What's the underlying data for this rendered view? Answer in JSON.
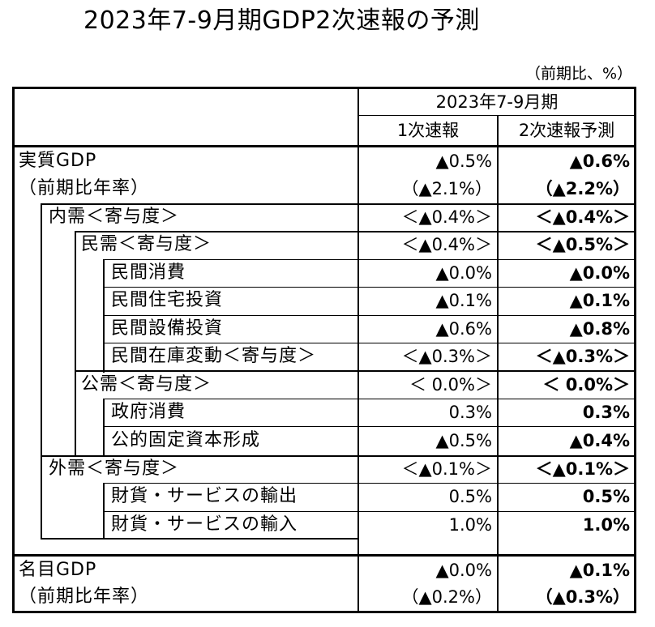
{
  "title": "2023年7-9月期GDP2次速報の予測",
  "unit": "（前期比、%）",
  "header": {
    "period": "2023年7-9月期",
    "col1": "1次速報",
    "col2": "2次速報予測"
  },
  "rows": [
    {
      "label": "実質GDP",
      "v1": "▲0.5%",
      "v2": "▲0.6%"
    },
    {
      "label": "（前期比年率）",
      "v1": "（▲2.1%）",
      "v2": "（▲2.2%）"
    },
    {
      "label": "内需＜寄与度＞",
      "v1": "＜▲0.4%＞",
      "v2": "＜▲0.4%＞"
    },
    {
      "label": "民需＜寄与度＞",
      "v1": "＜▲0.4%＞",
      "v2": "＜▲0.5%＞"
    },
    {
      "label": "民間消費",
      "v1": "▲0.0%",
      "v2": "▲0.0%"
    },
    {
      "label": "民間住宅投資",
      "v1": "▲0.1%",
      "v2": "▲0.1%"
    },
    {
      "label": "民間設備投資",
      "v1": "▲0.6%",
      "v2": "▲0.8%"
    },
    {
      "label": "民間在庫変動＜寄与度＞",
      "v1": "＜▲0.3%＞",
      "v2": "＜▲0.3%＞"
    },
    {
      "label": "公需＜寄与度＞",
      "v1": "＜ 0.0%＞",
      "v2": "＜ 0.0%＞"
    },
    {
      "label": "政府消費",
      "v1": "0.3%",
      "v2": "0.3%"
    },
    {
      "label": "公的固定資本形成",
      "v1": "▲0.5%",
      "v2": "▲0.4%"
    },
    {
      "label": "外需＜寄与度＞",
      "v1": "＜▲0.1%＞",
      "v2": "＜▲0.1%＞"
    },
    {
      "label": "財貨・サービスの輸出",
      "v1": "0.5%",
      "v2": "0.5%"
    },
    {
      "label": "財貨・サービスの輸入",
      "v1": "1.0%",
      "v2": "1.0%"
    },
    {
      "label": "名目GDP",
      "v1": "▲0.0%",
      "v2": "▲0.1%"
    },
    {
      "label": "（前期比年率）",
      "v1": "（▲0.2%）",
      "v2": "（▲0.3%）"
    }
  ]
}
